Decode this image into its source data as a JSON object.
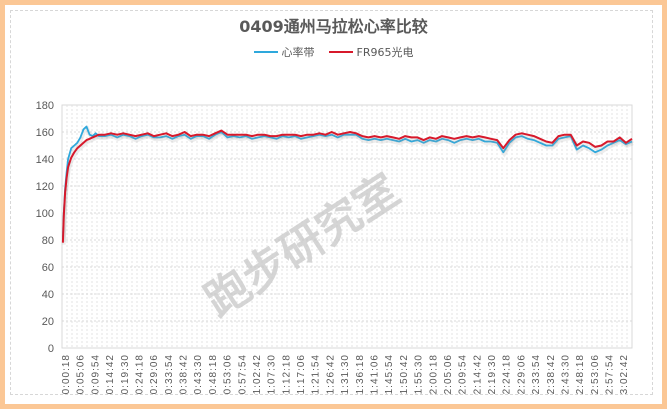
{
  "title": "0409通州马拉松心率比较",
  "watermark": "跑步研究室",
  "legend": [
    {
      "label": "心率带",
      "color": "#2ea8dc"
    },
    {
      "label": "FR965光电",
      "color": "#d7192b"
    }
  ],
  "chart_data": {
    "type": "line",
    "title": "0409通州马拉松心率比较",
    "xlabel": "",
    "ylabel": "",
    "ylim": [
      0,
      180
    ],
    "yticks": [
      0,
      20,
      40,
      60,
      80,
      100,
      120,
      140,
      160,
      180
    ],
    "grid": true,
    "legend_position": "top",
    "categories": [
      "0:00:18",
      "0:05:06",
      "0:09:54",
      "0:14:42",
      "0:19:30",
      "0:24:18",
      "0:29:06",
      "0:33:54",
      "0:38:42",
      "0:43:30",
      "0:48:18",
      "0:53:06",
      "0:57:54",
      "1:02:42",
      "1:07:30",
      "1:12:18",
      "1:17:06",
      "1:21:54",
      "1:26:42",
      "1:31:30",
      "1:36:18",
      "1:41:06",
      "1:45:54",
      "1:50:42",
      "1:55:30",
      "2:00:18",
      "2:05:06",
      "2:09:54",
      "2:14:42",
      "2:19:30",
      "2:24:18",
      "2:29:06",
      "2:33:54",
      "2:38:42",
      "2:43:30",
      "2:48:18",
      "2:53:06",
      "2:57:54",
      "3:02:42"
    ],
    "series": [
      {
        "name": "心率带",
        "color": "#2ea8dc",
        "x_minutes": [
          0.3,
          0.6,
          1,
          1.5,
          2,
          3,
          4,
          5,
          6,
          7,
          8,
          9,
          10,
          11,
          12,
          14,
          16,
          18,
          20,
          22,
          24,
          26,
          28,
          30,
          32,
          34,
          36,
          38,
          40,
          42,
          44,
          46,
          48,
          50,
          52,
          54,
          56,
          58,
          60,
          62,
          64,
          66,
          68,
          70,
          72,
          74,
          76,
          78,
          80,
          82,
          84,
          86,
          88,
          90,
          92,
          94,
          96,
          98,
          100,
          102,
          104,
          106,
          108,
          110,
          112,
          114,
          116,
          118,
          120,
          122,
          124,
          126,
          128,
          130,
          132,
          134,
          136,
          138,
          140,
          142,
          144,
          146,
          148,
          150,
          152,
          154,
          156,
          158,
          160,
          162,
          164,
          166,
          168,
          170,
          172,
          174,
          176,
          178,
          180,
          182,
          184,
          186
        ],
        "values": [
          80,
          100,
          118,
          130,
          140,
          148,
          150,
          152,
          156,
          162,
          164,
          158,
          157,
          159,
          157,
          157,
          158,
          156,
          158,
          157,
          155,
          157,
          158,
          156,
          156,
          157,
          155,
          157,
          158,
          155,
          157,
          157,
          155,
          158,
          160,
          156,
          157,
          156,
          157,
          155,
          156,
          157,
          156,
          155,
          157,
          156,
          157,
          155,
          156,
          157,
          158,
          157,
          158,
          156,
          158,
          158,
          158,
          155,
          154,
          155,
          154,
          155,
          154,
          153,
          155,
          153,
          154,
          152,
          154,
          153,
          155,
          154,
          152,
          154,
          155,
          154,
          155,
          153,
          153,
          152,
          145,
          152,
          156,
          157,
          155,
          154,
          152,
          150,
          150,
          155,
          156,
          157,
          147,
          150,
          148,
          145,
          147,
          150,
          152,
          154,
          151,
          153
        ]
      },
      {
        "name": "FR965光电",
        "color": "#d7192b",
        "x_minutes": [
          0.3,
          0.6,
          1,
          1.5,
          2,
          3,
          4,
          5,
          6,
          7,
          8,
          9,
          10,
          11,
          12,
          14,
          16,
          18,
          20,
          22,
          24,
          26,
          28,
          30,
          32,
          34,
          36,
          38,
          40,
          42,
          44,
          46,
          48,
          50,
          52,
          54,
          56,
          58,
          60,
          62,
          64,
          66,
          68,
          70,
          72,
          74,
          76,
          78,
          80,
          82,
          84,
          86,
          88,
          90,
          92,
          94,
          96,
          98,
          100,
          102,
          104,
          106,
          108,
          110,
          112,
          114,
          116,
          118,
          120,
          122,
          124,
          126,
          128,
          130,
          132,
          134,
          136,
          138,
          140,
          142,
          144,
          146,
          148,
          150,
          152,
          154,
          156,
          158,
          160,
          162,
          164,
          166,
          168,
          170,
          172,
          174,
          176,
          178,
          180,
          182,
          184,
          186
        ],
        "values": [
          78,
          98,
          115,
          126,
          134,
          141,
          145,
          148,
          150,
          152,
          154,
          155,
          156,
          157,
          158,
          158,
          159,
          158,
          159,
          158,
          157,
          158,
          159,
          157,
          158,
          159,
          157,
          158,
          160,
          157,
          158,
          158,
          157,
          159,
          161,
          158,
          158,
          158,
          158,
          157,
          158,
          158,
          157,
          157,
          158,
          158,
          158,
          157,
          158,
          158,
          159,
          158,
          160,
          158,
          159,
          160,
          159,
          157,
          156,
          157,
          156,
          157,
          156,
          155,
          157,
          156,
          156,
          154,
          156,
          155,
          157,
          156,
          155,
          156,
          157,
          156,
          157,
          156,
          155,
          154,
          148,
          154,
          158,
          159,
          158,
          157,
          155,
          153,
          152,
          157,
          158,
          158,
          150,
          153,
          152,
          149,
          150,
          153,
          153,
          156,
          152,
          155
        ]
      }
    ]
  }
}
